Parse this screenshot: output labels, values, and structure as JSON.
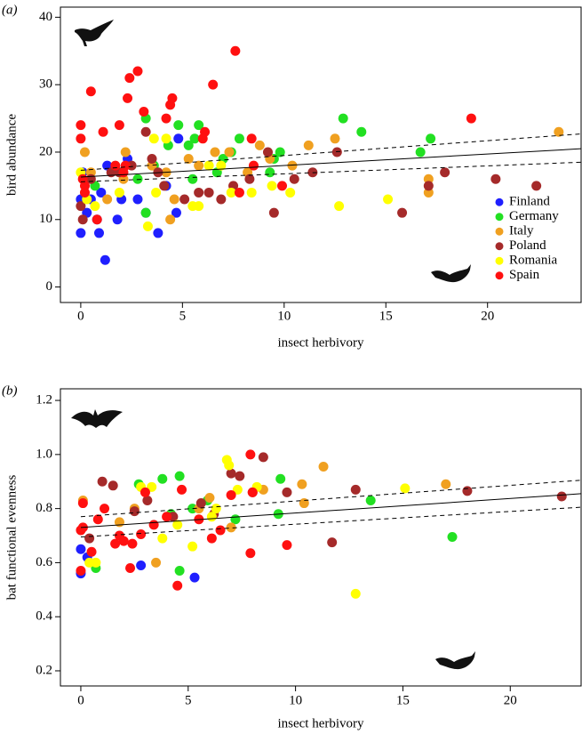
{
  "chart_data": [
    {
      "type": "scatter",
      "panel_label": "(a)",
      "xlabel": "insect herbivory",
      "ylabel": "bird abundance",
      "xlim": [
        -1.0,
        24.6
      ],
      "ylim": [
        -2.3,
        41.5
      ],
      "xticks": [
        0,
        5,
        10,
        15,
        20
      ],
      "yticks": [
        0,
        10,
        20,
        30,
        40
      ],
      "legend": "bottom-right",
      "series": [
        {
          "name": "Finland",
          "color": "#1f1fff",
          "x": [
            0,
            0,
            0.1,
            0.3,
            0.5,
            0.8,
            0.9,
            1.0,
            1.2,
            1.3,
            1.8,
            2.3,
            2.8,
            3.2,
            3.8,
            4.7,
            4.8,
            4.2,
            2
          ],
          "y": [
            8,
            13,
            17,
            11,
            13,
            10,
            8,
            14,
            4,
            18,
            10,
            19,
            13,
            11,
            8,
            11,
            22,
            15,
            13
          ]
        },
        {
          "name": "Germany",
          "color": "#22e022",
          "x": [
            0.7,
            3.2,
            3.2,
            4.3,
            4.8,
            5.3,
            5.6,
            5.8,
            6.7,
            7,
            7.4,
            7.8,
            9.5,
            9.8,
            12.9,
            13.8,
            16.7,
            17.2,
            2.8,
            3.6,
            5.5,
            9.3
          ],
          "y": [
            15,
            25,
            11,
            21,
            24,
            21,
            22,
            24,
            17,
            19,
            20,
            22,
            19,
            20,
            25,
            23,
            20,
            22,
            16,
            18,
            16,
            17
          ]
        },
        {
          "name": "Italy",
          "color": "#f0a020",
          "x": [
            0.2,
            0.5,
            1.3,
            2.1,
            2.2,
            3.5,
            4.2,
            4.6,
            5.3,
            5.8,
            6.6,
            7.3,
            8.2,
            8.8,
            9.3,
            10.4,
            11.2,
            12.5,
            17.1,
            17.1,
            23.5,
            4.4
          ],
          "y": [
            20,
            17,
            13,
            16,
            20,
            18,
            17,
            13,
            19,
            18,
            20,
            20,
            17,
            21,
            19,
            18,
            21,
            22,
            14,
            16,
            23,
            10
          ]
        },
        {
          "name": "Poland",
          "color": "#a52a2a",
          "x": [
            0,
            0.1,
            0.5,
            1.5,
            1.9,
            2.5,
            3.2,
            3.5,
            3.8,
            4.1,
            5.1,
            5.8,
            6.3,
            6.9,
            7.5,
            8.3,
            9.2,
            9.5,
            10.5,
            11.4,
            12.6,
            15.8,
            17.1,
            17.9,
            20.4,
            22.4
          ],
          "y": [
            12,
            10,
            16,
            17,
            17,
            18,
            23,
            19,
            17,
            15,
            13,
            14,
            14,
            13,
            15,
            16,
            20,
            11,
            16,
            17,
            20,
            11,
            15,
            17,
            16,
            15
          ]
        },
        {
          "name": "Romania",
          "color": "#ffff00",
          "x": [
            0,
            0.3,
            0.7,
            1.9,
            3.3,
            3.6,
            4.2,
            5.5,
            5.8,
            6.9,
            7.4,
            8.4,
            9.4,
            10.3,
            12.7,
            15.1,
            3.7,
            6.3
          ],
          "y": [
            17,
            13,
            12,
            14,
            9,
            22,
            22,
            12,
            12,
            18,
            14,
            14,
            15,
            14,
            12,
            13,
            14,
            18
          ]
        },
        {
          "name": "Spain",
          "color": "#ff1010",
          "x": [
            0,
            0,
            0.1,
            0.2,
            0.5,
            0.8,
            1.1,
            1.7,
            1.9,
            2.2,
            2.3,
            2.4,
            2.8,
            3.1,
            4.2,
            4.4,
            4.5,
            6,
            6.1,
            6.5,
            7.6,
            7.8,
            8.4,
            8.5,
            9.9,
            19.2,
            0.2,
            2.1
          ],
          "y": [
            22,
            24,
            16,
            15,
            29,
            10,
            23,
            18,
            24,
            18,
            28,
            31,
            32,
            26,
            25,
            27,
            28,
            22,
            23,
            30,
            35,
            14,
            22,
            18,
            15,
            25,
            14,
            17
          ]
        }
      ],
      "lines": [
        {
          "style": "solid",
          "x": [
            0,
            24.6
          ],
          "y": [
            16.3,
            20.5
          ]
        },
        {
          "style": "dashed",
          "x": [
            0,
            24.6
          ],
          "y": [
            17.3,
            22.7
          ]
        },
        {
          "style": "dashed",
          "x": [
            0,
            24.6
          ],
          "y": [
            15.6,
            18.5
          ]
        }
      ]
    },
    {
      "type": "scatter",
      "panel_label": "(b)",
      "xlabel": "insect herbivory",
      "ylabel": "bat functional evenness",
      "xlim": [
        -0.95,
        23.3
      ],
      "ylim": [
        0.144,
        1.243
      ],
      "xticks": [
        0,
        5,
        10,
        15,
        20
      ],
      "yticks": [
        0.2,
        0.4,
        0.6,
        0.8,
        {
          "value": 1,
          "label": "1.0"
        },
        1.2
      ],
      "series": [
        {
          "color": "#1f1fff",
          "x": [
            0,
            0,
            0.3,
            2.8,
            5.3
          ],
          "y": [
            0.56,
            0.65,
            0.62,
            0.59,
            0.545
          ]
        },
        {
          "color": "#22e022",
          "x": [
            0.7,
            2.7,
            3.8,
            4.6,
            4.6,
            5.2,
            5.9,
            7.2,
            9.2,
            9.3,
            13.5,
            17.3,
            4.2
          ],
          "y": [
            0.58,
            0.89,
            0.91,
            0.92,
            0.57,
            0.8,
            0.83,
            0.76,
            0.78,
            0.91,
            0.83,
            0.695,
            0.78
          ]
        },
        {
          "color": "#f0a020",
          "x": [
            0.1,
            1.8,
            2.5,
            3.5,
            5.5,
            6,
            7,
            8.5,
            10.3,
            10.4,
            11.3,
            17
          ],
          "y": [
            0.83,
            0.75,
            0.8,
            0.6,
            0.8,
            0.84,
            0.73,
            0.87,
            0.89,
            0.82,
            0.955,
            0.89
          ]
        },
        {
          "color": "#a52a2a",
          "x": [
            0.4,
            1.0,
            1.5,
            2.5,
            3.1,
            4.3,
            5.6,
            6.2,
            7.0,
            7.4,
            8.0,
            8.5,
            9.6,
            11.7,
            12.8,
            18,
            22.4
          ],
          "y": [
            0.69,
            0.9,
            0.885,
            0.79,
            0.83,
            0.77,
            0.82,
            0.78,
            0.93,
            0.92,
            0.86,
            0.99,
            0.86,
            0.675,
            0.87,
            0.865,
            0.845
          ]
        },
        {
          "color": "#ffff00",
          "x": [
            0.4,
            0.7,
            2.8,
            3.3,
            3.8,
            4.5,
            5.2,
            6.3,
            6.8,
            6.9,
            7.3,
            8.2,
            12.8,
            15.1,
            6.1
          ],
          "y": [
            0.6,
            0.6,
            0.88,
            0.88,
            0.69,
            0.74,
            0.66,
            0.8,
            0.98,
            0.96,
            0.87,
            0.88,
            0.485,
            0.875,
            0.77
          ]
        },
        {
          "color": "#ff1010",
          "x": [
            0,
            0,
            0.1,
            0.5,
            0.8,
            1.1,
            1.6,
            1.8,
            2.0,
            2.3,
            2.4,
            2.8,
            3.0,
            3.4,
            4.0,
            4.5,
            4.7,
            5.5,
            6.1,
            6.5,
            7.0,
            7.9,
            7.9,
            8.0,
            9.6,
            0.1
          ],
          "y": [
            0.57,
            0.72,
            0.73,
            0.64,
            0.76,
            0.8,
            0.67,
            0.7,
            0.68,
            0.58,
            0.67,
            0.705,
            0.86,
            0.74,
            0.77,
            0.515,
            0.87,
            0.76,
            0.69,
            0.72,
            0.85,
            1.0,
            0.635,
            0.86,
            0.665,
            0.82
          ]
        }
      ],
      "lines": [
        {
          "style": "solid",
          "x": [
            0,
            23.3
          ],
          "y": [
            0.73,
            0.855
          ]
        },
        {
          "style": "dashed",
          "x": [
            0,
            23.3
          ],
          "y": [
            0.77,
            0.905
          ]
        },
        {
          "style": "dashed",
          "x": [
            0,
            23.3
          ],
          "y": [
            0.695,
            0.805
          ]
        }
      ]
    }
  ]
}
